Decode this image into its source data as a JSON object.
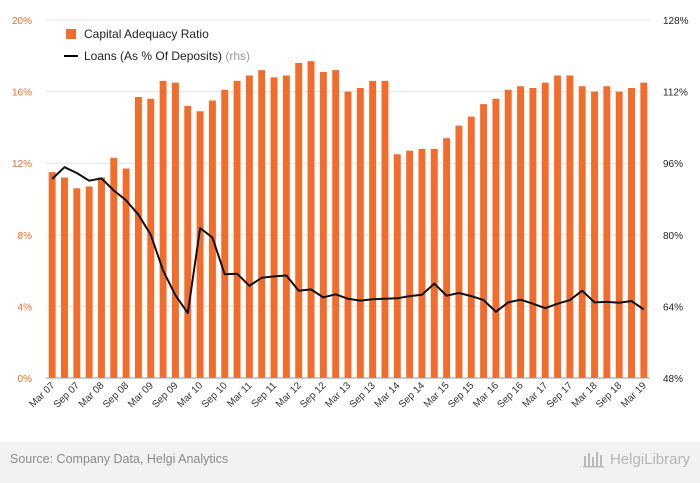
{
  "chart_data": {
    "type": "bar+line",
    "legend": [
      {
        "label": "Capital Adequacy Ratio",
        "suffix": "",
        "color": "#f26c2b",
        "kind": "bar"
      },
      {
        "label": "Loans (As % Of Deposits)",
        "suffix": "(rhs)",
        "color": "#000000",
        "kind": "line"
      }
    ],
    "y_left": {
      "min": 0,
      "max": 20,
      "ticks": [
        "0%",
        "4%",
        "8%",
        "12%",
        "16%",
        "20%"
      ],
      "tick_values": [
        0,
        4,
        8,
        12,
        16,
        20
      ]
    },
    "y_right": {
      "min": 48,
      "max": 128,
      "ticks": [
        "48%",
        "64%",
        "80%",
        "96%",
        "112%",
        "128%"
      ],
      "tick_values": [
        48,
        64,
        80,
        96,
        112,
        128
      ]
    },
    "x_labels": [
      "Mar 07",
      "Sep 07",
      "Mar 08",
      "Sep 08",
      "Mar 09",
      "Sep 09",
      "Mar 10",
      "Sep 10",
      "Mar 11",
      "Sep 11",
      "Mar 12",
      "Sep 12",
      "Mar 13",
      "Sep 13",
      "Mar 14",
      "Sep 14",
      "Mar 15",
      "Sep 15",
      "Mar 16",
      "Sep 16",
      "Mar 17",
      "Sep 17",
      "Mar 18",
      "Sep 18",
      "Mar 19"
    ],
    "capital_adequacy_ratio": [
      11.5,
      11.2,
      10.6,
      10.7,
      11.2,
      12.3,
      11.7,
      15.7,
      15.6,
      16.6,
      16.5,
      15.2,
      14.9,
      15.5,
      16.1,
      16.6,
      16.9,
      17.2,
      16.8,
      16.9,
      17.6,
      17.7,
      17.1,
      17.2,
      16.0,
      16.2,
      16.6,
      16.6,
      12.5,
      12.7,
      12.8,
      12.8,
      13.4,
      14.1,
      14.6,
      15.3,
      15.6,
      16.1,
      16.3,
      16.2,
      16.5,
      16.9,
      16.9,
      16.3,
      16.0,
      16.3,
      16.0,
      16.2,
      16.5
    ],
    "loans_to_deposits": [
      92.5,
      95.1,
      93.8,
      92.1,
      92.6,
      89.9,
      87.7,
      84.5,
      80.0,
      72.0,
      66.5,
      62.5,
      81.5,
      79.4,
      71.2,
      71.3,
      68.6,
      70.4,
      70.7,
      70.9,
      67.5,
      67.8,
      66.0,
      66.7,
      65.7,
      65.3,
      65.6,
      65.7,
      65.8,
      66.3,
      66.6,
      69.1,
      66.4,
      67.0,
      66.3,
      65.4,
      62.8,
      64.9,
      65.5,
      64.6,
      63.6,
      64.6,
      65.4,
      67.5,
      64.9,
      65.0,
      64.8,
      65.2,
      63.3
    ]
  },
  "footer": {
    "source": "Source: Company Data, Helgi Analytics",
    "brand": "HelgiLibrary"
  }
}
